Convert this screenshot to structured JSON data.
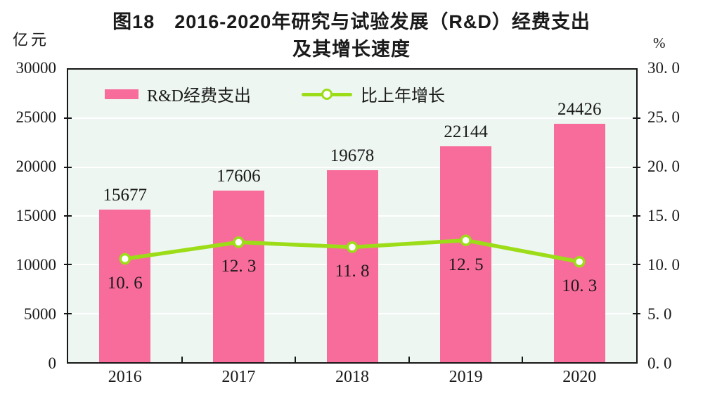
{
  "title": {
    "line1": "图18　2016-2020年研究与试验发展（R&D）经费支出",
    "line2": "及其增长速度"
  },
  "axes": {
    "left_unit": "亿元",
    "right_unit": "%",
    "left_ticks": [
      "30000",
      "25000",
      "20000",
      "15000",
      "10000",
      "5000",
      "0"
    ],
    "right_ticks": [
      "30. 0",
      "25. 0",
      "20. 0",
      "15. 0",
      "10. 0",
      "5. 0",
      "0. 0"
    ]
  },
  "legend": {
    "bar_label": "R&D经费支出",
    "line_label": "比上年增长"
  },
  "colors": {
    "bar": "#F86C9B",
    "line": "#9CDD18",
    "plot_background": "#EDF6F1",
    "gridline": "#FFFFFF",
    "border": "#161616",
    "text": "#1A1A1A"
  },
  "chart_data": {
    "type": "bar",
    "title": "图18 2016-2020年研究与试验发展（R&D）经费支出及其增长速度",
    "categories": [
      "2016",
      "2017",
      "2018",
      "2019",
      "2020"
    ],
    "series": [
      {
        "name": "R&D经费支出",
        "type": "bar",
        "axis": "left",
        "values": [
          15677,
          17606,
          19678,
          22144,
          24426
        ],
        "labels": [
          "15677",
          "17606",
          "19678",
          "22144",
          "24426"
        ]
      },
      {
        "name": "比上年增长",
        "type": "line",
        "axis": "right",
        "values": [
          10.6,
          12.3,
          11.8,
          12.5,
          10.3
        ],
        "labels": [
          "10. 6",
          "12. 3",
          "11. 8",
          "12. 5",
          "10. 3"
        ]
      }
    ],
    "left_axis": {
      "label": "亿元",
      "range": [
        0,
        30000
      ],
      "step": 5000
    },
    "right_axis": {
      "label": "%",
      "range": [
        0,
        30
      ],
      "step": 5
    },
    "grid": true,
    "legend_position": "top-left-inside"
  }
}
